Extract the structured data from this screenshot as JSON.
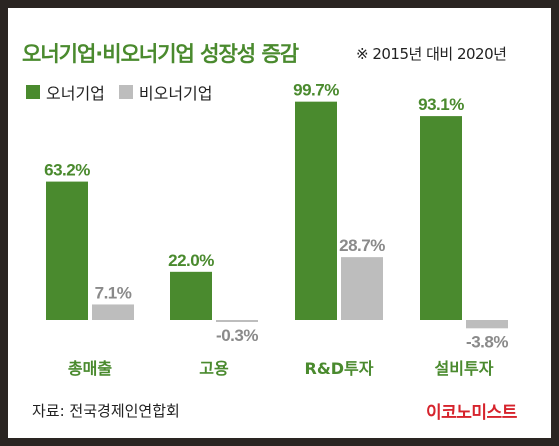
{
  "title": "오너기업·비오너기업 성장성 증감",
  "note": "※ 2015년 대비 2020년",
  "source": "자료: 전국경제인연합회",
  "brand": "이코노미스트",
  "colors": {
    "owner": "#4a8a2e",
    "nonowner": "#bdbdbd",
    "value_owner": "#4a8a2e",
    "value_nonowner": "#8a8a8a",
    "category": "#4a8a2e"
  },
  "chart_data": {
    "type": "bar",
    "categories": [
      "총매출",
      "고용",
      "R&D투자",
      "설비투자"
    ],
    "series": [
      {
        "name": "오너기업",
        "values": [
          63.2,
          22.0,
          99.7,
          93.1
        ],
        "labels": [
          "63.2%",
          "22.0%",
          "99.7%",
          "93.1%"
        ]
      },
      {
        "name": "비오너기업",
        "values": [
          7.1,
          -0.3,
          28.7,
          -3.8
        ],
        "labels": [
          "7.1%",
          "-0.3%",
          "28.7%",
          "-3.8%"
        ]
      }
    ]
  }
}
